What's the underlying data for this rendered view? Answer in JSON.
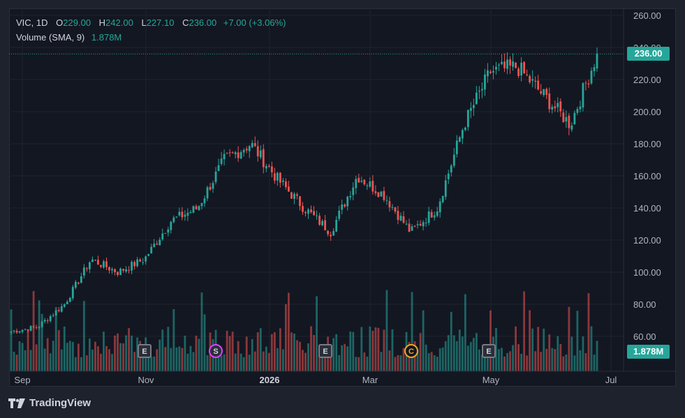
{
  "header": {
    "symbol": "VIC",
    "interval": "1D",
    "open_label": "O",
    "open": "229.00",
    "high_label": "H",
    "high": "242.00",
    "low_label": "L",
    "low": "227.10",
    "close_label": "C",
    "close": "236.00",
    "change": "+7.00 (+3.06%)",
    "volume_label": "Volume (SMA, 9)",
    "volume_value": "1.878M"
  },
  "price_tag": "236.00",
  "volume_tag": "1.878M",
  "branding": "TradingView",
  "events": [
    {
      "type": "earnings",
      "label": "E",
      "date": "Nov"
    },
    {
      "type": "split",
      "label": "S",
      "date": "Dec"
    },
    {
      "type": "earnings",
      "label": "E",
      "date": "Feb"
    },
    {
      "type": "calendar",
      "label": "C",
      "date": "Mar"
    },
    {
      "type": "earnings",
      "label": "E",
      "date": "May"
    }
  ],
  "colors": {
    "up": "#26a69a",
    "down": "#ef5350",
    "background": "#131722"
  },
  "chart_data": {
    "type": "candlestick",
    "title": "",
    "xlabel": "",
    "ylabel": "",
    "ylim": [
      40,
      262
    ],
    "y_ticks": [
      "260.00",
      "240.00",
      "220.00",
      "200.00",
      "180.00",
      "160.00",
      "140.00",
      "120.00",
      "100.00",
      "80.00",
      "60.00"
    ],
    "x_ticks": [
      {
        "label": "Sep",
        "bold": false
      },
      {
        "label": "Nov",
        "bold": false
      },
      {
        "label": "2026",
        "bold": true
      },
      {
        "label": "Mar",
        "bold": false
      },
      {
        "label": "May",
        "bold": false
      },
      {
        "label": "Jul",
        "bold": false
      }
    ],
    "grid": true,
    "last_close": 236.0,
    "series": [
      {
        "name": "VIC",
        "kind": "close_by_period",
        "points": [
          [
            "Sep",
            63
          ],
          [
            "Sep",
            66
          ],
          [
            "Oct",
            80
          ],
          [
            "Oct",
            108
          ],
          [
            "Nov",
            100
          ],
          [
            "Nov",
            108
          ],
          [
            "Dec",
            132
          ],
          [
            "Dec",
            140
          ],
          [
            "Jan",
            170
          ],
          [
            "Jan",
            180
          ],
          [
            "Jan",
            158
          ],
          [
            "Feb",
            140
          ],
          [
            "Feb",
            125
          ],
          [
            "Feb",
            160
          ],
          [
            "Mar",
            148
          ],
          [
            "Mar",
            125
          ],
          [
            "Apr",
            140
          ],
          [
            "Apr",
            192
          ],
          [
            "May",
            225
          ],
          [
            "May",
            228
          ],
          [
            "Jun",
            210
          ],
          [
            "Jun",
            192
          ],
          [
            "Jun",
            236
          ]
        ]
      }
    ]
  }
}
